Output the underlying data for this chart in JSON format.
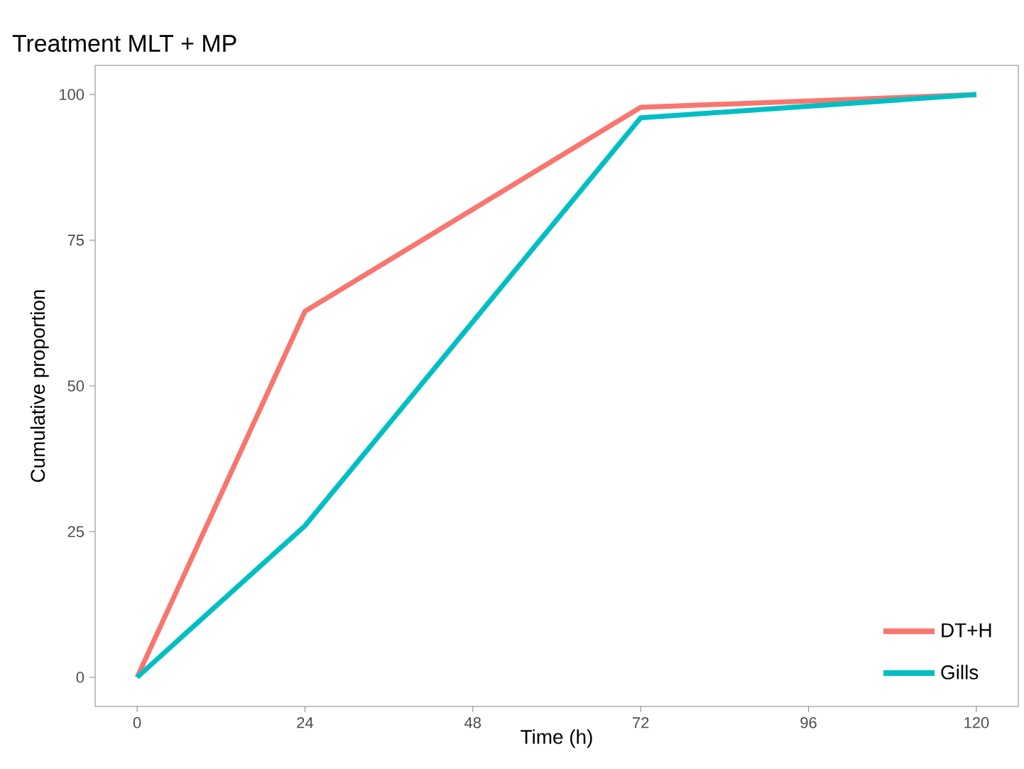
{
  "chart_data": {
    "type": "line",
    "title": "Treatment MLT + MP",
    "xlabel": "Time (h)",
    "ylabel": "Cumulative proportion",
    "x": [
      0,
      24,
      72,
      120
    ],
    "series": [
      {
        "name": "DT+H",
        "color": "#f8766d",
        "values": [
          0,
          62.8,
          97.8,
          100
        ]
      },
      {
        "name": "Gills",
        "color": "#00bfc4",
        "values": [
          0,
          26,
          96,
          100
        ]
      }
    ],
    "xlim": [
      -6,
      126
    ],
    "ylim": [
      -5,
      105
    ],
    "xticks": [
      0,
      24,
      48,
      72,
      96,
      120
    ],
    "yticks": [
      0,
      25,
      50,
      75,
      100
    ],
    "grid": false,
    "legend": "bottom right",
    "marker": "none",
    "line_style": "solid"
  }
}
